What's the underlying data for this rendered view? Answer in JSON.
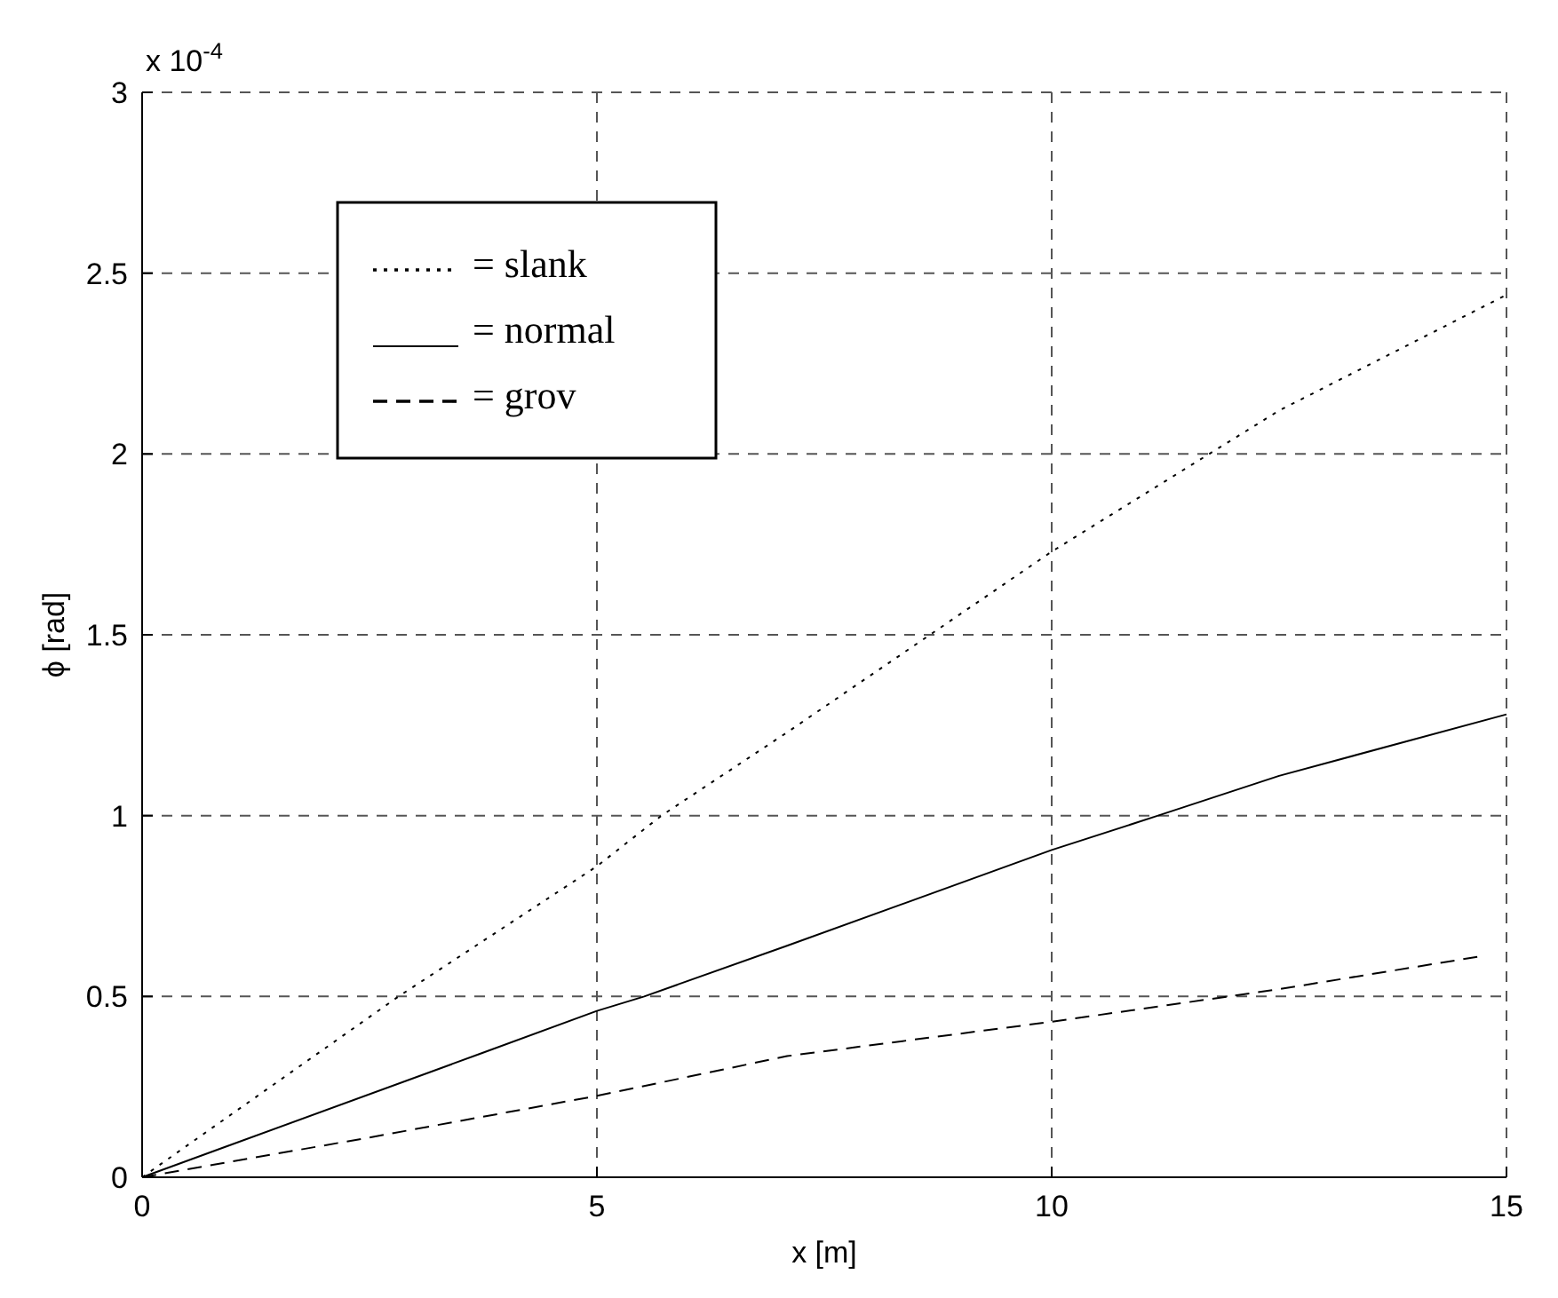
{
  "chart_data": {
    "type": "line",
    "xlabel": "x [m]",
    "ylabel": "ϕ [rad]",
    "annotations": [
      "x 10$^{-4}$"
    ],
    "xlim": [
      0,
      15
    ],
    "ylim": [
      0,
      3
    ],
    "xticks": [
      0,
      5,
      10,
      15
    ],
    "yticks": [
      0,
      0.5,
      1,
      1.5,
      2,
      2.5,
      3
    ],
    "grid": true,
    "legend": "top left",
    "series": [
      {
        "name": "= slank",
        "color": "#000000",
        "line_style": "dotted",
        "x": [
          0,
          2.82,
          5,
          5.71,
          7.09,
          10,
          12.5,
          15
        ],
        "values": [
          0,
          0.5,
          0.86,
          1.0,
          1.23,
          1.73,
          2.12,
          2.44
        ]
      },
      {
        "name": "= normal",
        "color": "#000000",
        "line_style": "solid",
        "x": [
          0,
          3.7,
          5,
          5.52,
          7.09,
          10,
          11.17,
          12.5,
          15
        ],
        "values": [
          0,
          0.34,
          0.46,
          0.5,
          0.64,
          0.905,
          1.0,
          1.11,
          1.28
        ]
      },
      {
        "name": "= grov",
        "color": "#000000",
        "line_style": "dashed",
        "x": [
          0,
          2.5,
          5,
          7.09,
          10,
          12.5,
          14.69
        ],
        "values": [
          0,
          0.11,
          0.225,
          0.335,
          0.43,
          0.52,
          0.61
        ]
      }
    ]
  }
}
